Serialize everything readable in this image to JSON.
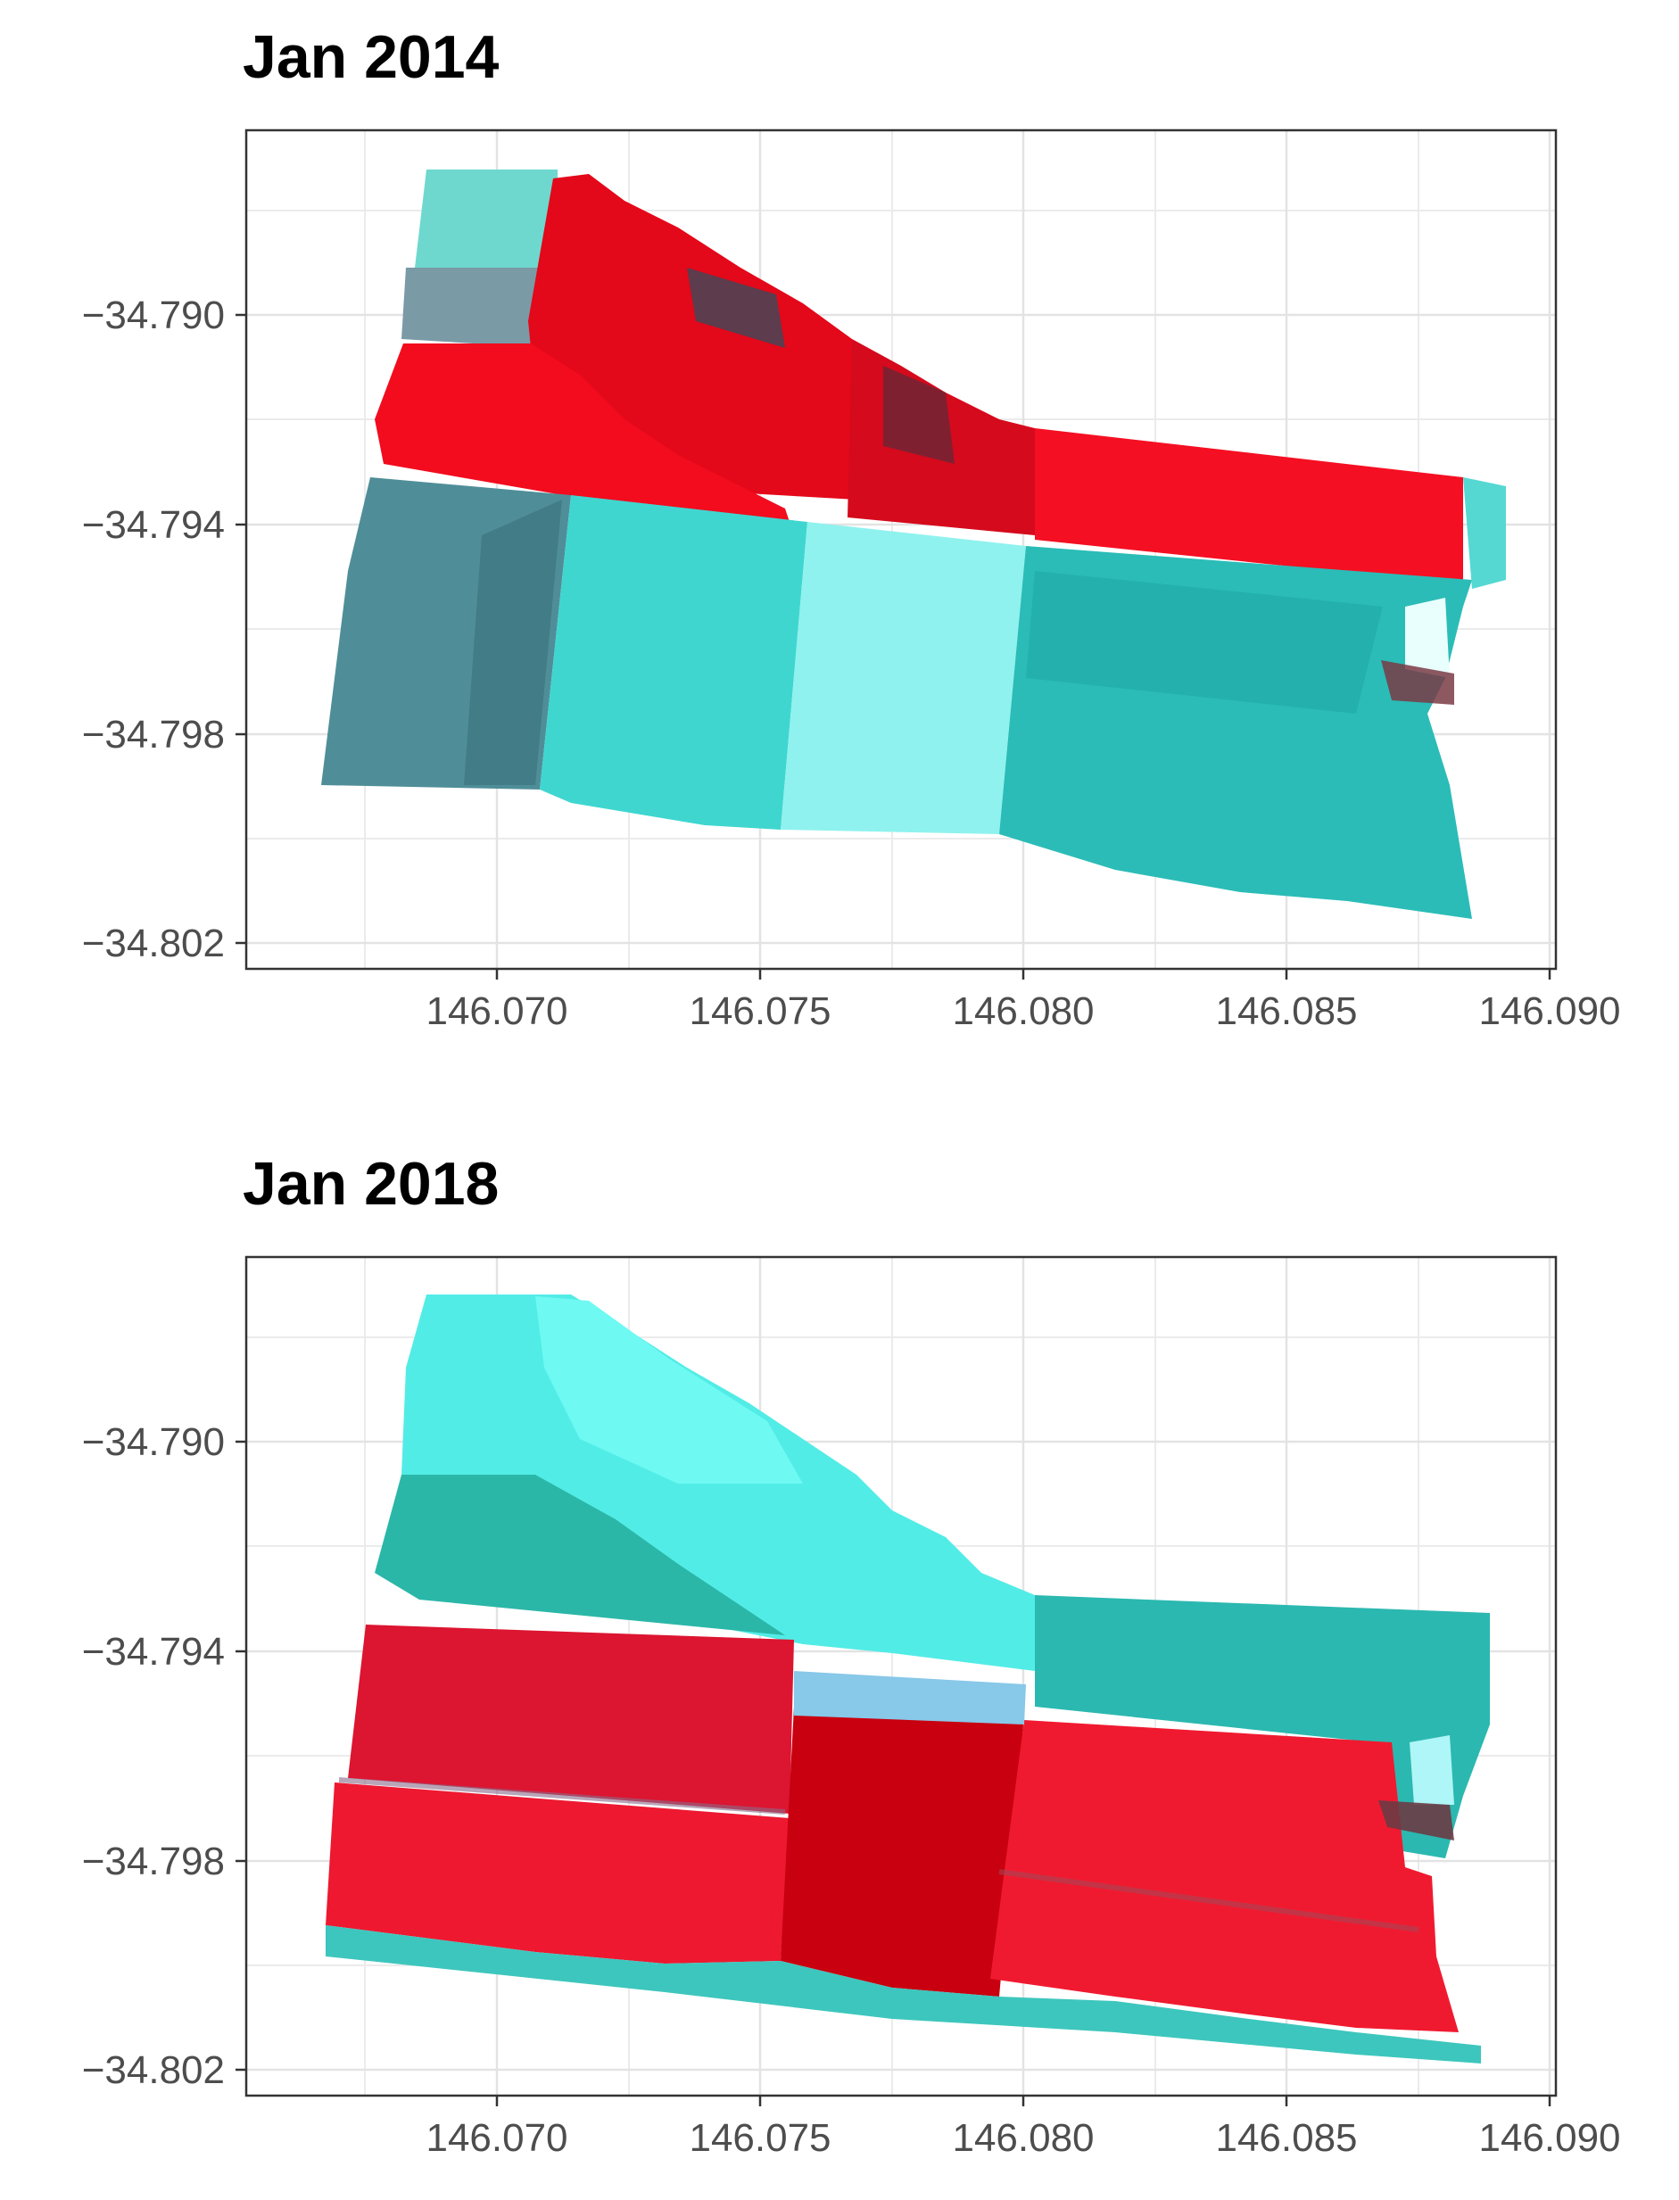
{
  "panels": [
    {
      "title": "Jan 2014",
      "y_ticks": [
        "−34.790",
        "−34.794",
        "−34.798",
        "−34.802"
      ],
      "x_ticks": [
        "146.070",
        "146.075",
        "146.080",
        "146.085",
        "146.090"
      ]
    },
    {
      "title": "Jan 2018",
      "y_ticks": [
        "−34.790",
        "−34.794",
        "−34.798",
        "−34.802"
      ],
      "x_ticks": [
        "146.070",
        "146.075",
        "146.080",
        "146.085",
        "146.090"
      ]
    }
  ],
  "chart_data": [
    {
      "type": "raster-map",
      "title": "Jan 2014",
      "x_ticks": [
        146.07,
        146.075,
        146.08,
        146.085,
        146.09
      ],
      "y_ticks": [
        -34.79,
        -34.794,
        -34.798,
        -34.802
      ],
      "grid": true,
      "colors": {
        "vegetation": "#ff0a1e",
        "bare_soil": "#2fd3cf",
        "light": "#8ff7f2",
        "dark_soil": "#4a8d96"
      }
    },
    {
      "type": "raster-map",
      "title": "Jan 2018",
      "x_ticks": [
        146.07,
        146.075,
        146.08,
        146.085,
        146.09
      ],
      "y_ticks": [
        -34.79,
        -34.794,
        -34.798,
        -34.802
      ],
      "grid": true,
      "colors": {
        "vegetation": "#e8112a",
        "bare_soil": "#2fc4be",
        "light": "#5ff6f0",
        "dark_soil": "#1a9a8a"
      }
    }
  ]
}
